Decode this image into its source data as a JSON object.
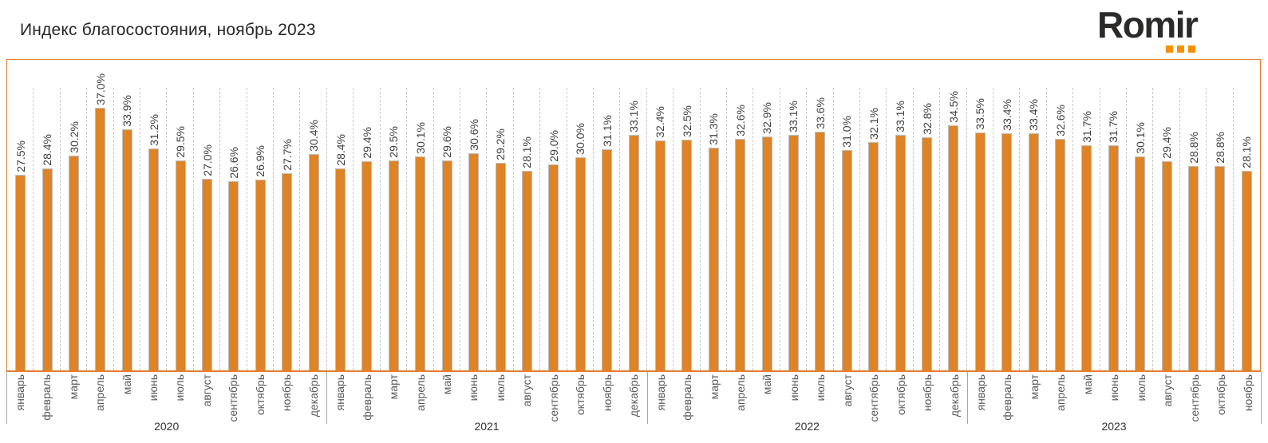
{
  "header": {
    "title": "Индекс благосостояния, ноябрь 2023",
    "logo_text": "Romir",
    "logo_dot_color": "#f59100"
  },
  "chart_data": {
    "type": "bar",
    "title": "Индекс благосостояния, ноябрь 2023",
    "value_suffix": "%",
    "decimal_separator": ".",
    "ylim": [
      0,
      40
    ],
    "grid": "dashed-vertical-category-boundaries",
    "legend_position": "none",
    "bar_color": "#df8327",
    "bar_border_color": "#bfbfbf",
    "axis_color": "#e67e30",
    "groups": [
      {
        "year": "2020",
        "categories": [
          "январь",
          "февраль",
          "март",
          "апрель",
          "май",
          "июнь",
          "июль",
          "август",
          "сентябрь",
          "октябрь",
          "ноябрь",
          "декабрь"
        ],
        "values": [
          27.5,
          28.4,
          30.2,
          37.0,
          33.9,
          31.2,
          29.5,
          27.0,
          26.6,
          26.9,
          27.7,
          30.4
        ]
      },
      {
        "year": "2021",
        "categories": [
          "январь",
          "февраль",
          "март",
          "апрель",
          "май",
          "июнь",
          "июль",
          "август",
          "сентябрь",
          "октябрь",
          "ноябрь",
          "декабрь"
        ],
        "values": [
          28.4,
          29.4,
          29.5,
          30.1,
          29.6,
          30.6,
          29.2,
          28.1,
          29.0,
          30.0,
          31.1,
          33.1
        ]
      },
      {
        "year": "2022",
        "categories": [
          "январь",
          "февраль",
          "март",
          "апрель",
          "май",
          "июнь",
          "июль",
          "август",
          "сентябрь",
          "октябрь",
          "ноябрь",
          "декабрь"
        ],
        "values": [
          32.4,
          32.5,
          31.3,
          32.6,
          32.9,
          33.1,
          33.6,
          31.0,
          32.1,
          33.1,
          32.8,
          34.5
        ]
      },
      {
        "year": "2023",
        "categories": [
          "январь",
          "февраль",
          "март",
          "апрель",
          "май",
          "июнь",
          "июль",
          "август",
          "сентябрь",
          "октябрь",
          "ноябрь"
        ],
        "values": [
          33.5,
          33.4,
          33.4,
          32.6,
          31.7,
          31.7,
          30.1,
          29.4,
          28.8,
          28.8,
          28.1
        ]
      }
    ]
  }
}
